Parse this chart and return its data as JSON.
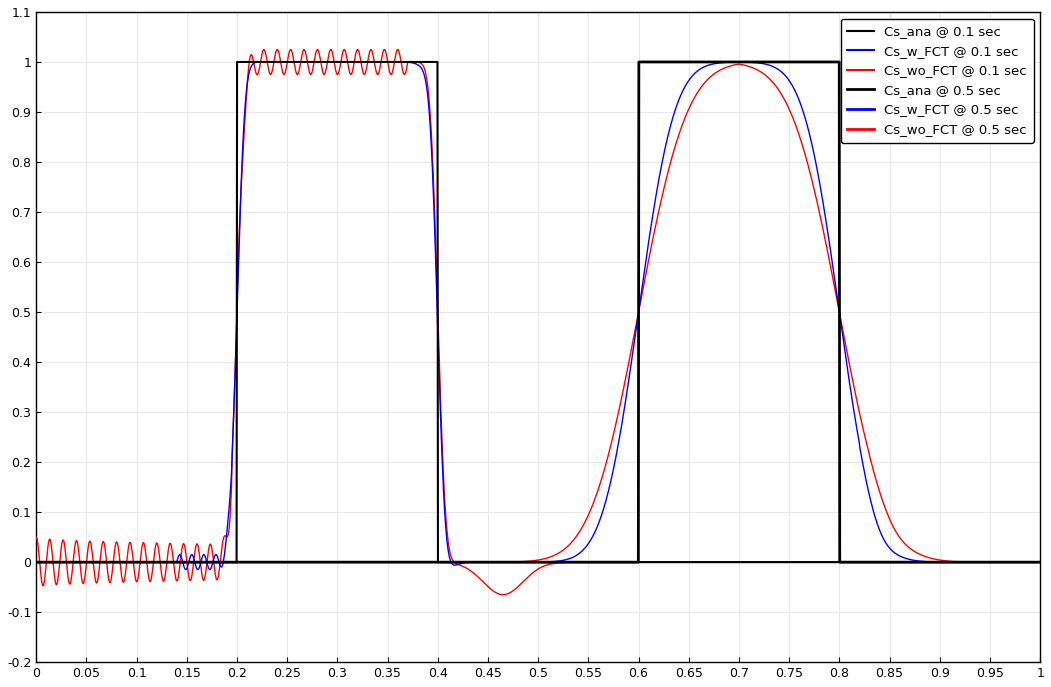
{
  "title": "",
  "xlim": [
    0,
    1
  ],
  "ylim": [
    -0.2,
    1.1
  ],
  "xticks": [
    0,
    0.05,
    0.1,
    0.15,
    0.2,
    0.25,
    0.3,
    0.35,
    0.4,
    0.45,
    0.5,
    0.55,
    0.6,
    0.65,
    0.7,
    0.75,
    0.8,
    0.85,
    0.9,
    0.95,
    1.0
  ],
  "yticks": [
    -0.2,
    -0.1,
    0,
    0.1,
    0.2,
    0.3,
    0.4,
    0.5,
    0.6,
    0.7,
    0.8,
    0.9,
    1.0,
    1.1
  ],
  "legend_labels": [
    "Cs_ana @ 0.1 sec",
    "Cs_w_FCT @ 0.1 sec",
    "Cs_wo_FCT @ 0.1 sec",
    "Cs_ana @ 0.5 sec",
    "Cs_w_FCT @ 0.5 sec",
    "Cs_wo_FCT @ 0.5 sec"
  ],
  "legend_colors": [
    "black",
    "blue",
    "red",
    "black",
    "blue",
    "red"
  ],
  "background_color": "#ffffff",
  "grid_color": "#e8e8e8"
}
